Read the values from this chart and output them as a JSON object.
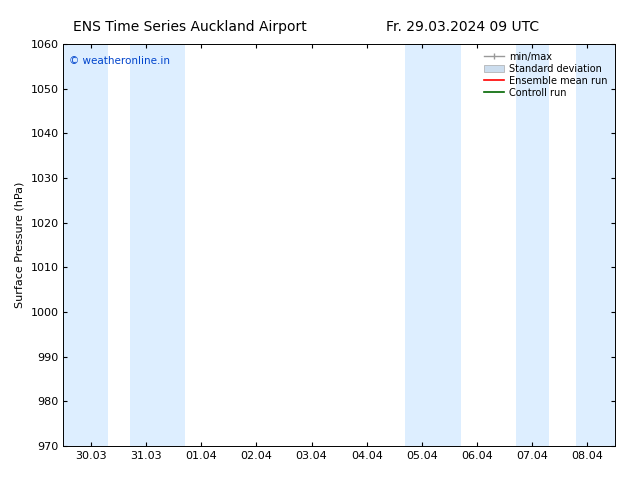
{
  "title_left": "ENS Time Series Auckland Airport",
  "title_right": "Fr. 29.03.2024 09 UTC",
  "ylabel": "Surface Pressure (hPa)",
  "ylim": [
    970,
    1060
  ],
  "yticks": [
    970,
    980,
    990,
    1000,
    1010,
    1020,
    1030,
    1040,
    1050,
    1060
  ],
  "xtick_labels": [
    "30.03",
    "31.03",
    "01.04",
    "02.04",
    "03.04",
    "04.04",
    "05.04",
    "06.04",
    "07.04",
    "08.04"
  ],
  "xtick_positions": [
    0,
    1,
    2,
    3,
    4,
    5,
    6,
    7,
    8,
    9
  ],
  "xlim": [
    -0.5,
    9.5
  ],
  "shaded_bands": [
    {
      "x_start": -0.5,
      "x_end": 0.3,
      "color": "#ddeeff"
    },
    {
      "x_start": 0.7,
      "x_end": 1.7,
      "color": "#ddeeff"
    },
    {
      "x_start": 5.7,
      "x_end": 6.7,
      "color": "#ddeeff"
    },
    {
      "x_start": 7.7,
      "x_end": 8.3,
      "color": "#ddeeff"
    },
    {
      "x_start": 8.8,
      "x_end": 9.5,
      "color": "#ddeeff"
    }
  ],
  "watermark": "© weatheronline.in",
  "watermark_color": "#0044cc",
  "legend_labels": [
    "min/max",
    "Standard deviation",
    "Ensemble mean run",
    "Controll run"
  ],
  "legend_colors_line": [
    "#999999",
    "#bbbbbb",
    "#ff0000",
    "#006600"
  ],
  "background_color": "#ffffff",
  "plot_bg_color": "#ffffff",
  "title_fontsize": 10,
  "label_fontsize": 8,
  "tick_fontsize": 8
}
